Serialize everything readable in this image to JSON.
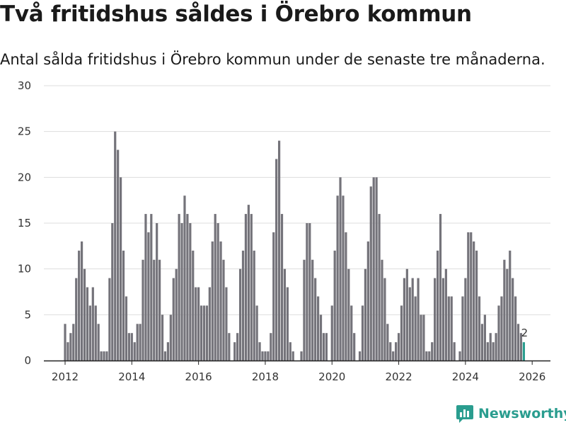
{
  "title": "Två fritidshus såldes i Örebro kommun",
  "subtitle": "Antal sålda fritidshus i Örebro kommun under de senaste tre månaderna.",
  "brand": {
    "name": "Newsworthy",
    "icon": "bar-chart-logo-icon",
    "color": "#2a9d8f"
  },
  "colors": {
    "bar": "#74737a",
    "highlight": "#2a9d8f",
    "grid": "#dddddd"
  },
  "chart_data": {
    "type": "bar",
    "title": "Två fritidshus såldes i Örebro kommun",
    "xlabel": "",
    "ylabel": "",
    "ylim": [
      0,
      30
    ],
    "yticks": [
      0,
      5,
      10,
      15,
      20,
      25,
      30
    ],
    "xticks": [
      "2012",
      "2014",
      "2016",
      "2018",
      "2020",
      "2022",
      "2024",
      "2026"
    ],
    "start": "2012-01",
    "end": "2026-02",
    "annotation": {
      "month": "2026-02",
      "label": "2"
    },
    "series": [
      {
        "name": "Antal sålda fritidshus",
        "values": [
          4,
          2,
          3,
          4,
          9,
          12,
          13,
          10,
          8,
          6,
          8,
          6,
          4,
          1,
          1,
          1,
          9,
          15,
          25,
          23,
          20,
          12,
          7,
          3,
          3,
          2,
          4,
          4,
          11,
          16,
          14,
          16,
          11,
          15,
          11,
          5,
          1,
          2,
          5,
          9,
          10,
          16,
          15,
          18,
          16,
          15,
          12,
          8,
          8,
          6,
          6,
          6,
          8,
          13,
          16,
          15,
          13,
          11,
          8,
          3,
          0,
          2,
          3,
          10,
          12,
          16,
          17,
          16,
          12,
          6,
          2,
          1,
          1,
          1,
          3,
          14,
          22,
          24,
          16,
          10,
          8,
          2,
          1,
          0,
          0,
          1,
          11,
          15,
          15,
          11,
          9,
          7,
          5,
          3,
          3,
          0,
          6,
          12,
          18,
          20,
          18,
          14,
          10,
          6,
          3,
          0,
          1,
          6,
          10,
          13,
          19,
          20,
          20,
          16,
          11,
          9,
          4,
          2,
          1,
          2,
          3,
          6,
          9,
          10,
          8,
          9,
          7,
          9,
          5,
          5,
          1,
          1,
          2,
          9,
          12,
          16,
          9,
          10,
          7,
          7,
          2,
          0,
          1,
          7,
          9,
          14,
          14,
          13,
          12,
          7,
          4,
          5,
          2,
          3,
          2,
          3,
          6,
          7,
          11,
          10,
          12,
          9,
          7,
          4,
          3,
          2
        ]
      }
    ]
  }
}
